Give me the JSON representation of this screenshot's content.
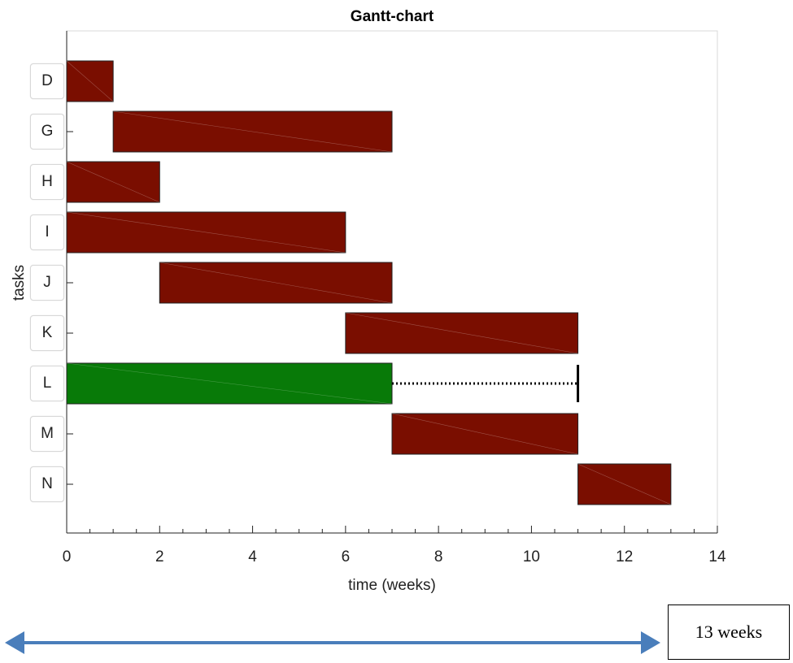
{
  "chart_data": {
    "type": "gantt",
    "title": "Gantt-chart",
    "xlabel": "time (weeks)",
    "ylabel": "tasks",
    "xlim": [
      0,
      14
    ],
    "xticks": [
      0,
      2,
      4,
      6,
      8,
      10,
      12,
      14
    ],
    "grid": false,
    "tasks": [
      {
        "label": "D",
        "start": 0,
        "end": 1,
        "color": "#7a0e00"
      },
      {
        "label": "G",
        "start": 1,
        "end": 7,
        "color": "#7a0e00"
      },
      {
        "label": "H",
        "start": 0,
        "end": 2,
        "color": "#7a0e00"
      },
      {
        "label": "I",
        "start": 0,
        "end": 6,
        "color": "#7a0e00"
      },
      {
        "label": "J",
        "start": 2,
        "end": 7,
        "color": "#7a0e00"
      },
      {
        "label": "K",
        "start": 6,
        "end": 11,
        "color": "#7a0e00"
      },
      {
        "label": "L",
        "start": 0,
        "end": 7,
        "color": "#087a08",
        "slack_end": 11
      },
      {
        "label": "M",
        "start": 7,
        "end": 11,
        "color": "#7a0e00"
      },
      {
        "label": "N",
        "start": 11,
        "end": 13,
        "color": "#7a0e00"
      }
    ]
  },
  "annotation": {
    "duration_label": "13 weeks",
    "arrow_color": "#4a7ebb"
  }
}
